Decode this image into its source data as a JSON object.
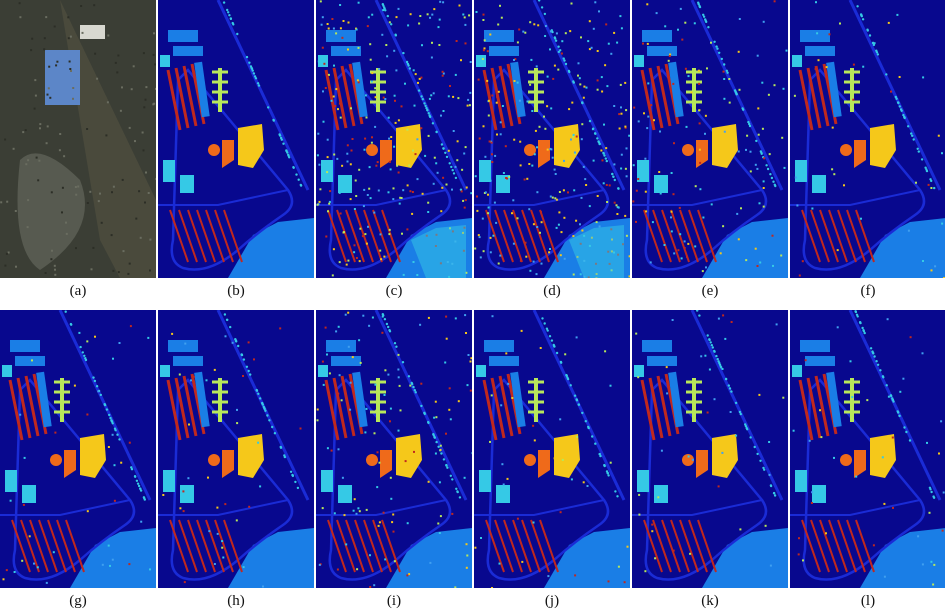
{
  "figure": {
    "panels": [
      {
        "id": "a",
        "label": "(a)",
        "kind": "rgb"
      },
      {
        "id": "b",
        "label": "(b)",
        "kind": "classmap",
        "noise": "none"
      },
      {
        "id": "c",
        "label": "(c)",
        "kind": "classmap",
        "noise": "heavy"
      },
      {
        "id": "d",
        "label": "(d)",
        "kind": "classmap",
        "noise": "heavy"
      },
      {
        "id": "e",
        "label": "(e)",
        "kind": "classmap",
        "noise": "medium"
      },
      {
        "id": "f",
        "label": "(f)",
        "kind": "classmap",
        "noise": "light"
      },
      {
        "id": "g",
        "label": "(g)",
        "kind": "classmap",
        "noise": "light"
      },
      {
        "id": "h",
        "label": "(h)",
        "kind": "classmap",
        "noise": "light"
      },
      {
        "id": "i",
        "label": "(i)",
        "kind": "classmap",
        "noise": "medium"
      },
      {
        "id": "j",
        "label": "(j)",
        "kind": "classmap",
        "noise": "light"
      },
      {
        "id": "k",
        "label": "(k)",
        "kind": "classmap",
        "noise": "light"
      },
      {
        "id": "l",
        "label": "(l)",
        "kind": "classmap",
        "noise": "light"
      }
    ],
    "class_colors": {
      "background": "#08088e",
      "road": "#1a2bd6",
      "meadow": "#1a7ee6",
      "tree": "#35c9e6",
      "lightgreen": "#b7e85a",
      "yellow": "#f5c81a",
      "orange": "#ef6a1a",
      "red": "#c0281e",
      "sand": "#40a0f0"
    }
  }
}
